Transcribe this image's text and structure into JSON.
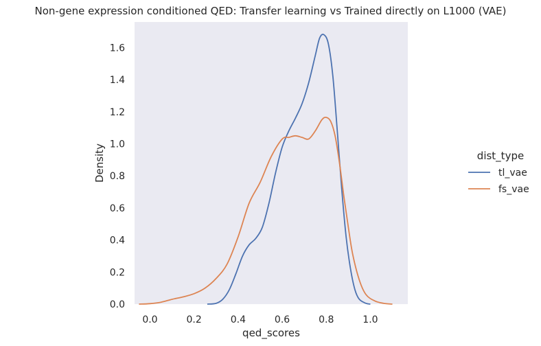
{
  "chart_data": {
    "type": "line",
    "title": "Non-gene expression conditioned  QED: Transfer learning vs Trained directly on L1000 (VAE)",
    "xlabel": "qed_scores",
    "ylabel": "Density",
    "xlim": [
      -0.07,
      1.17
    ],
    "ylim": [
      0,
      1.76
    ],
    "xticks": [
      0.0,
      0.2,
      0.4,
      0.6,
      0.8,
      1.0
    ],
    "xtick_labels": [
      "0.0",
      "0.2",
      "0.4",
      "0.6",
      "0.8",
      "1.0"
    ],
    "yticks": [
      0.0,
      0.2,
      0.4,
      0.6,
      0.8,
      1.0,
      1.2,
      1.4,
      1.6
    ],
    "ytick_labels": [
      "0.0",
      "0.2",
      "0.4",
      "0.6",
      "0.8",
      "1.0",
      "1.2",
      "1.4",
      "1.6"
    ],
    "grid": false,
    "plot_background": "#eaeaf2",
    "legend": {
      "title": "dist_type",
      "placement": "right"
    },
    "series": [
      {
        "name": "tl_vae",
        "color": "#4c72b0",
        "points": [
          [
            0.26,
            0.0
          ],
          [
            0.3,
            0.005
          ],
          [
            0.33,
            0.03
          ],
          [
            0.36,
            0.09
          ],
          [
            0.39,
            0.19
          ],
          [
            0.42,
            0.3
          ],
          [
            0.45,
            0.37
          ],
          [
            0.48,
            0.41
          ],
          [
            0.51,
            0.48
          ],
          [
            0.54,
            0.63
          ],
          [
            0.57,
            0.82
          ],
          [
            0.6,
            0.98
          ],
          [
            0.63,
            1.08
          ],
          [
            0.66,
            1.16
          ],
          [
            0.69,
            1.25
          ],
          [
            0.72,
            1.38
          ],
          [
            0.75,
            1.55
          ],
          [
            0.77,
            1.66
          ],
          [
            0.79,
            1.68
          ],
          [
            0.81,
            1.62
          ],
          [
            0.83,
            1.42
          ],
          [
            0.85,
            1.08
          ],
          [
            0.87,
            0.72
          ],
          [
            0.89,
            0.42
          ],
          [
            0.91,
            0.22
          ],
          [
            0.93,
            0.09
          ],
          [
            0.95,
            0.03
          ],
          [
            0.98,
            0.005
          ],
          [
            1.0,
            0.0
          ]
        ]
      },
      {
        "name": "fs_vae",
        "color": "#dd8452",
        "points": [
          [
            -0.05,
            0.0
          ],
          [
            0.0,
            0.003
          ],
          [
            0.05,
            0.012
          ],
          [
            0.1,
            0.03
          ],
          [
            0.15,
            0.045
          ],
          [
            0.2,
            0.065
          ],
          [
            0.25,
            0.1
          ],
          [
            0.3,
            0.16
          ],
          [
            0.35,
            0.25
          ],
          [
            0.4,
            0.42
          ],
          [
            0.45,
            0.63
          ],
          [
            0.5,
            0.76
          ],
          [
            0.55,
            0.92
          ],
          [
            0.6,
            1.03
          ],
          [
            0.63,
            1.04
          ],
          [
            0.66,
            1.05
          ],
          [
            0.69,
            1.04
          ],
          [
            0.72,
            1.03
          ],
          [
            0.75,
            1.08
          ],
          [
            0.78,
            1.15
          ],
          [
            0.8,
            1.165
          ],
          [
            0.82,
            1.14
          ],
          [
            0.84,
            1.05
          ],
          [
            0.86,
            0.88
          ],
          [
            0.88,
            0.67
          ],
          [
            0.9,
            0.48
          ],
          [
            0.92,
            0.31
          ],
          [
            0.95,
            0.15
          ],
          [
            0.98,
            0.06
          ],
          [
            1.02,
            0.02
          ],
          [
            1.06,
            0.005
          ],
          [
            1.1,
            0.0
          ]
        ]
      }
    ]
  }
}
